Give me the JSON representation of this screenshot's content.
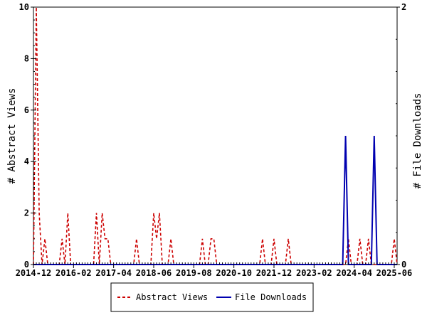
{
  "chart_data": {
    "type": "line",
    "x_tick_labels": [
      "2014-12",
      "2016-02",
      "2017-04",
      "2018-06",
      "2019-08",
      "2020-10",
      "2021-12",
      "2023-02",
      "2024-04",
      "2025-06"
    ],
    "y_left": {
      "label": "# Abstract Views",
      "ticks": [
        "0",
        "2",
        "4",
        "6",
        "8",
        "10"
      ],
      "range": [
        0,
        10
      ]
    },
    "y_right": {
      "label": "# File Downloads",
      "ticks": [
        "0",
        "2"
      ],
      "range": [
        0,
        2
      ]
    },
    "x_range_months": [
      0,
      127
    ],
    "grid": false,
    "legend_position": "bottom-center",
    "series": [
      {
        "name": "Abstract Views",
        "axis": "left",
        "color": "#cc0000",
        "dash": true,
        "points": [
          [
            0,
            0
          ],
          [
            1,
            10
          ],
          [
            2,
            2
          ],
          [
            3,
            0
          ],
          [
            4,
            1
          ],
          [
            5,
            0
          ],
          [
            6,
            0
          ],
          [
            7,
            0
          ],
          [
            8,
            0
          ],
          [
            9,
            0
          ],
          [
            10,
            1
          ],
          [
            11,
            0
          ],
          [
            12,
            2
          ],
          [
            13,
            0
          ],
          [
            14,
            0
          ],
          [
            15,
            0
          ],
          [
            16,
            0
          ],
          [
            17,
            0
          ],
          [
            18,
            0
          ],
          [
            19,
            0
          ],
          [
            20,
            0
          ],
          [
            21,
            0
          ],
          [
            22,
            2
          ],
          [
            23,
            0
          ],
          [
            24,
            2
          ],
          [
            25,
            1
          ],
          [
            26,
            1
          ],
          [
            27,
            0
          ],
          [
            28,
            0
          ],
          [
            29,
            0
          ],
          [
            30,
            0
          ],
          [
            31,
            0
          ],
          [
            32,
            0
          ],
          [
            33,
            0
          ],
          [
            34,
            0
          ],
          [
            35,
            0
          ],
          [
            36,
            1
          ],
          [
            37,
            0
          ],
          [
            38,
            0
          ],
          [
            39,
            0
          ],
          [
            40,
            0
          ],
          [
            41,
            0
          ],
          [
            42,
            2
          ],
          [
            43,
            1
          ],
          [
            44,
            2
          ],
          [
            45,
            0
          ],
          [
            46,
            0
          ],
          [
            47,
            0
          ],
          [
            48,
            1
          ],
          [
            49,
            0
          ],
          [
            50,
            0
          ],
          [
            51,
            0
          ],
          [
            52,
            0
          ],
          [
            53,
            0
          ],
          [
            54,
            0
          ],
          [
            55,
            0
          ],
          [
            56,
            0
          ],
          [
            57,
            0
          ],
          [
            58,
            0
          ],
          [
            59,
            1
          ],
          [
            60,
            0
          ],
          [
            61,
            0
          ],
          [
            62,
            1
          ],
          [
            63,
            1
          ],
          [
            64,
            0
          ],
          [
            65,
            0
          ],
          [
            66,
            0
          ],
          [
            67,
            0
          ],
          [
            68,
            0
          ],
          [
            69,
            0
          ],
          [
            70,
            0
          ],
          [
            71,
            0
          ],
          [
            72,
            0
          ],
          [
            73,
            0
          ],
          [
            74,
            0
          ],
          [
            75,
            0
          ],
          [
            76,
            0
          ],
          [
            77,
            0
          ],
          [
            78,
            0
          ],
          [
            79,
            0
          ],
          [
            80,
            1
          ],
          [
            81,
            0
          ],
          [
            82,
            0
          ],
          [
            83,
            0
          ],
          [
            84,
            1
          ],
          [
            85,
            0
          ],
          [
            86,
            0
          ],
          [
            87,
            0
          ],
          [
            88,
            0
          ],
          [
            89,
            1
          ],
          [
            90,
            0
          ],
          [
            91,
            0
          ],
          [
            92,
            0
          ],
          [
            93,
            0
          ],
          [
            94,
            0
          ],
          [
            95,
            0
          ],
          [
            96,
            0
          ],
          [
            97,
            0
          ],
          [
            98,
            0
          ],
          [
            99,
            0
          ],
          [
            100,
            0
          ],
          [
            101,
            0
          ],
          [
            102,
            0
          ],
          [
            103,
            0
          ],
          [
            104,
            0
          ],
          [
            105,
            0
          ],
          [
            106,
            0
          ],
          [
            107,
            0
          ],
          [
            108,
            0
          ],
          [
            109,
            0
          ],
          [
            110,
            1
          ],
          [
            111,
            0
          ],
          [
            112,
            0
          ],
          [
            113,
            0
          ],
          [
            114,
            1
          ],
          [
            115,
            0
          ],
          [
            116,
            0
          ],
          [
            117,
            1
          ],
          [
            118,
            0
          ],
          [
            119,
            0
          ],
          [
            120,
            0
          ],
          [
            121,
            0
          ],
          [
            122,
            0
          ],
          [
            123,
            0
          ],
          [
            124,
            0
          ],
          [
            125,
            0
          ],
          [
            126,
            1
          ],
          [
            127,
            0
          ]
        ]
      },
      {
        "name": "File Downloads",
        "axis": "right",
        "color": "#0000b0",
        "dash": false,
        "points": [
          [
            0,
            0
          ],
          [
            1,
            0
          ],
          [
            2,
            0
          ],
          [
            3,
            0
          ],
          [
            4,
            0
          ],
          [
            5,
            0
          ],
          [
            6,
            0
          ],
          [
            7,
            0
          ],
          [
            8,
            0
          ],
          [
            9,
            0
          ],
          [
            10,
            0
          ],
          [
            11,
            0
          ],
          [
            12,
            0
          ],
          [
            13,
            0
          ],
          [
            14,
            0
          ],
          [
            15,
            0
          ],
          [
            16,
            0
          ],
          [
            17,
            0
          ],
          [
            18,
            0
          ],
          [
            19,
            0
          ],
          [
            20,
            0
          ],
          [
            21,
            0
          ],
          [
            22,
            0
          ],
          [
            23,
            0
          ],
          [
            24,
            0
          ],
          [
            25,
            0
          ],
          [
            26,
            0
          ],
          [
            27,
            0
          ],
          [
            28,
            0
          ],
          [
            29,
            0
          ],
          [
            30,
            0
          ],
          [
            31,
            0
          ],
          [
            32,
            0
          ],
          [
            33,
            0
          ],
          [
            34,
            0
          ],
          [
            35,
            0
          ],
          [
            36,
            0
          ],
          [
            37,
            0
          ],
          [
            38,
            0
          ],
          [
            39,
            0
          ],
          [
            40,
            0
          ],
          [
            41,
            0
          ],
          [
            42,
            0
          ],
          [
            43,
            0
          ],
          [
            44,
            0
          ],
          [
            45,
            0
          ],
          [
            46,
            0
          ],
          [
            47,
            0
          ],
          [
            48,
            0
          ],
          [
            49,
            0
          ],
          [
            50,
            0
          ],
          [
            51,
            0
          ],
          [
            52,
            0
          ],
          [
            53,
            0
          ],
          [
            54,
            0
          ],
          [
            55,
            0
          ],
          [
            56,
            0
          ],
          [
            57,
            0
          ],
          [
            58,
            0
          ],
          [
            59,
            0
          ],
          [
            60,
            0
          ],
          [
            61,
            0
          ],
          [
            62,
            0
          ],
          [
            63,
            0
          ],
          [
            64,
            0
          ],
          [
            65,
            0
          ],
          [
            66,
            0
          ],
          [
            67,
            0
          ],
          [
            68,
            0
          ],
          [
            69,
            0
          ],
          [
            70,
            0
          ],
          [
            71,
            0
          ],
          [
            72,
            0
          ],
          [
            73,
            0
          ],
          [
            74,
            0
          ],
          [
            75,
            0
          ],
          [
            76,
            0
          ],
          [
            77,
            0
          ],
          [
            78,
            0
          ],
          [
            79,
            0
          ],
          [
            80,
            0
          ],
          [
            81,
            0
          ],
          [
            82,
            0
          ],
          [
            83,
            0
          ],
          [
            84,
            0
          ],
          [
            85,
            0
          ],
          [
            86,
            0
          ],
          [
            87,
            0
          ],
          [
            88,
            0
          ],
          [
            89,
            0
          ],
          [
            90,
            0
          ],
          [
            91,
            0
          ],
          [
            92,
            0
          ],
          [
            93,
            0
          ],
          [
            94,
            0
          ],
          [
            95,
            0
          ],
          [
            96,
            0
          ],
          [
            97,
            0
          ],
          [
            98,
            0
          ],
          [
            99,
            0
          ],
          [
            100,
            0
          ],
          [
            101,
            0
          ],
          [
            102,
            0
          ],
          [
            103,
            0
          ],
          [
            104,
            0
          ],
          [
            105,
            0
          ],
          [
            106,
            0
          ],
          [
            107,
            0
          ],
          [
            108,
            0
          ],
          [
            109,
            1
          ],
          [
            110,
            0
          ],
          [
            111,
            0
          ],
          [
            112,
            0
          ],
          [
            113,
            0
          ],
          [
            114,
            0
          ],
          [
            115,
            0
          ],
          [
            116,
            0
          ],
          [
            117,
            0
          ],
          [
            118,
            0
          ],
          [
            119,
            1
          ],
          [
            120,
            0
          ],
          [
            121,
            0
          ],
          [
            122,
            0
          ],
          [
            123,
            0
          ],
          [
            124,
            0
          ],
          [
            125,
            0
          ],
          [
            126,
            0
          ],
          [
            127,
            0
          ]
        ]
      }
    ]
  }
}
